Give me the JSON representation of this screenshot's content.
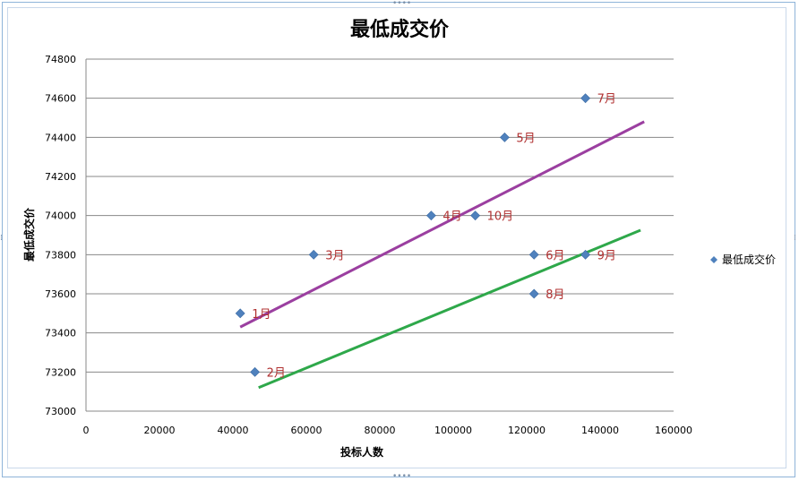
{
  "chart_data": {
    "type": "scatter",
    "title": "最低成交价",
    "xlabel": "投标人数",
    "ylabel": "最低成交价",
    "xlim": [
      0,
      160000
    ],
    "ylim": [
      73000,
      74800
    ],
    "xticks": [
      0,
      20000,
      40000,
      60000,
      80000,
      100000,
      120000,
      140000,
      160000
    ],
    "yticks": [
      73000,
      73200,
      73400,
      73600,
      73800,
      74000,
      74200,
      74400,
      74600,
      74800
    ],
    "grid": "horizontal",
    "legend": {
      "position": "right",
      "entries": [
        "最低成交价"
      ]
    },
    "series": [
      {
        "name": "最低成交价",
        "color": "#4f81bd",
        "marker": "diamond",
        "points": [
          {
            "x": 42000,
            "y": 73500,
            "label": "1月"
          },
          {
            "x": 46000,
            "y": 73200,
            "label": "2月"
          },
          {
            "x": 62000,
            "y": 73800,
            "label": "3月"
          },
          {
            "x": 94000,
            "y": 74000,
            "label": "4月"
          },
          {
            "x": 114000,
            "y": 74400,
            "label": "5月"
          },
          {
            "x": 122000,
            "y": 73800,
            "label": "6月"
          },
          {
            "x": 136000,
            "y": 74600,
            "label": "7月"
          },
          {
            "x": 122000,
            "y": 73600,
            "label": "8月"
          },
          {
            "x": 136000,
            "y": 73800,
            "label": "9月"
          },
          {
            "x": 106000,
            "y": 74000,
            "label": "10月"
          }
        ]
      }
    ],
    "lines": [
      {
        "color": "#9b3fa0",
        "x": [
          42000,
          152000
        ],
        "y": [
          73430,
          74480
        ]
      },
      {
        "color": "#2ea84a",
        "x": [
          47000,
          151000
        ],
        "y": [
          73120,
          73925
        ]
      }
    ]
  }
}
